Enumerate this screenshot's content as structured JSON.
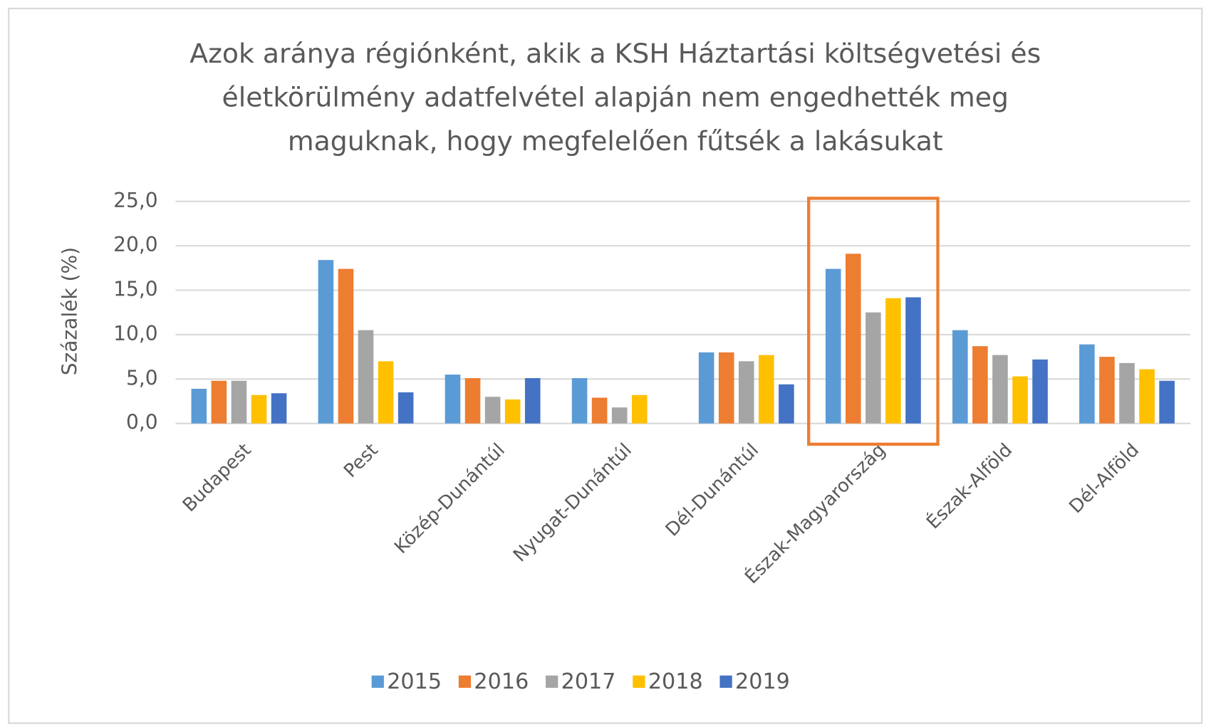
{
  "chart_data": {
    "type": "bar",
    "title": [
      "Azok aránya régiónként, akik a KSH Háztartási költségvetési és",
      "életkörülmény adatfelvétel alapján nem engedhették meg",
      "maguknak, hogy megfelelően fűtsék a lakásukat"
    ],
    "y_label": "Százalék (%)",
    "categories": [
      "Budapest",
      "Pest",
      "Közép-Dunántúl",
      "Nyugat-Dunántúl",
      "Dél-Dunántúl",
      "Észak-Magyarország",
      "Észak-Alföld",
      "Dél-Alföld"
    ],
    "series": [
      {
        "name": "2015",
        "color": "#5b9bd5",
        "values": [
          3.9,
          18.4,
          5.5,
          5.1,
          8.0,
          17.4,
          10.5,
          8.9
        ]
      },
      {
        "name": "2016",
        "color": "#ed7d31",
        "values": [
          4.8,
          17.4,
          5.1,
          2.9,
          8.0,
          19.1,
          8.7,
          7.5
        ]
      },
      {
        "name": "2017",
        "color": "#a5a5a5",
        "values": [
          4.8,
          10.5,
          3.0,
          1.8,
          7.0,
          12.5,
          7.7,
          6.8
        ]
      },
      {
        "name": "2018",
        "color": "#ffc000",
        "values": [
          3.2,
          7.0,
          2.7,
          3.2,
          7.7,
          14.1,
          5.3,
          6.1
        ]
      },
      {
        "name": "2019",
        "color": "#4472c4",
        "values": [
          3.4,
          3.5,
          5.1,
          null,
          4.4,
          14.2,
          7.2,
          4.8
        ]
      }
    ],
    "ylim": [
      0,
      25
    ],
    "yticks": [
      {
        "value": 0,
        "label": "0,0"
      },
      {
        "value": 5,
        "label": "5,0"
      },
      {
        "value": 10,
        "label": "10,0"
      },
      {
        "value": 15,
        "label": "15,0"
      },
      {
        "value": 20,
        "label": "20,0"
      },
      {
        "value": 25,
        "label": "25,0"
      }
    ],
    "grid": true,
    "legend": "bottom",
    "highlight_category": 5,
    "highlight_color": "#ed7d31"
  }
}
